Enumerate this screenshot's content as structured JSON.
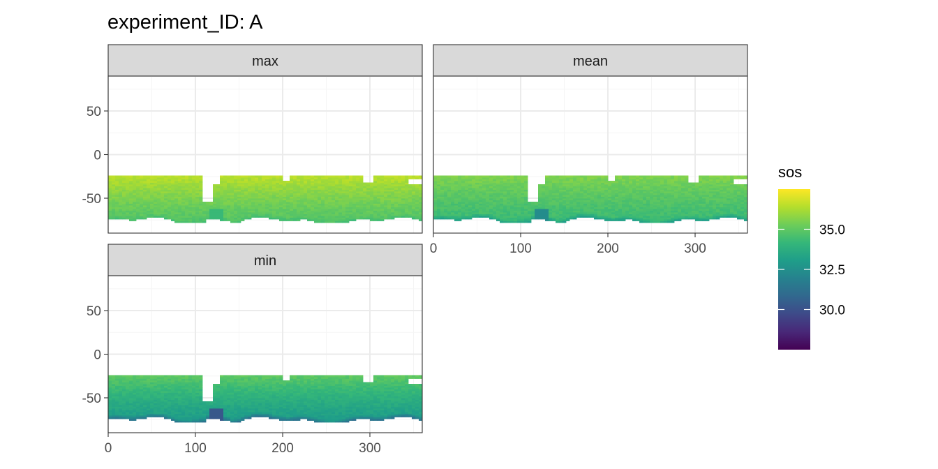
{
  "title": "experiment_ID: A",
  "chart_data": {
    "type": "heatmap",
    "facets": [
      "max",
      "mean",
      "min"
    ],
    "x_ticks": [
      0,
      100,
      200,
      300
    ],
    "y_ticks": [
      50,
      0,
      -50
    ],
    "xlim": [
      0,
      360
    ],
    "ylim": [
      -90,
      90
    ],
    "data_lat_range": [
      -78,
      -25
    ],
    "grid": true,
    "legend": {
      "title": "sos",
      "position": "right",
      "range": [
        27.5,
        37.5
      ],
      "ticks": [
        35.0,
        32.5,
        30.0
      ],
      "tick_labels": [
        "35.0",
        "32.5",
        "30.0"
      ],
      "colormap": "viridis"
    },
    "field_summary": {
      "max": {
        "north_band": 36.5,
        "mid": 35.5,
        "south_band": 34.8,
        "min_value": 34.0
      },
      "mean": {
        "north_band": 35.6,
        "mid": 34.9,
        "south_band": 34.3,
        "min_value": 31.5
      },
      "min": {
        "north_band": 35.0,
        "mid": 34.3,
        "south_band": 33.0,
        "min_value": 29.0
      }
    }
  },
  "colors": {
    "strip_fill": "#d9d9d9",
    "panel_border": "#333333",
    "grid_major": "#ebebeb",
    "grid_minor": "#f5f5f5"
  }
}
